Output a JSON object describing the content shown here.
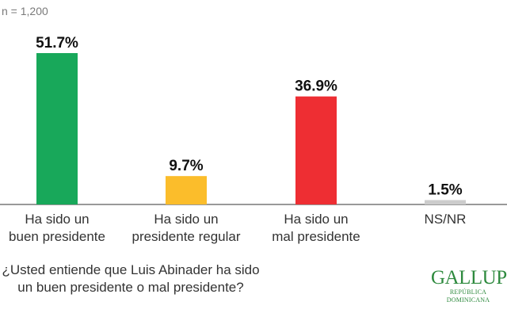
{
  "sample_note": "n = 1,200",
  "question": "¿Usted entiende que Luis Abinader ha sido un buen presidente o mal presidente?",
  "question_lines": [
    "¿Usted entiende que Luis Abinader ha sido",
    "un buen presidente o mal presidente?"
  ],
  "logo": {
    "name": "GALLUP",
    "subtitle": "REPÚBLICA DOMINICANA",
    "color": "#2e8a3e"
  },
  "chart_data": {
    "type": "bar",
    "categories": [
      [
        "Ha sido un",
        "buen presidente"
      ],
      [
        "Ha sido un",
        "presidente regular"
      ],
      [
        "Ha sido un",
        "mal presidente"
      ],
      [
        "NS/NR"
      ]
    ],
    "values": [
      51.7,
      9.7,
      36.9,
      1.5
    ],
    "labels": [
      "51.7%",
      "9.7%",
      "36.9%",
      "1.5%"
    ],
    "colors": [
      "#18a85a",
      "#fbbd2b",
      "#ee2e33",
      "#cccccc"
    ],
    "ylim": [
      0,
      51.7
    ],
    "grid": false
  }
}
